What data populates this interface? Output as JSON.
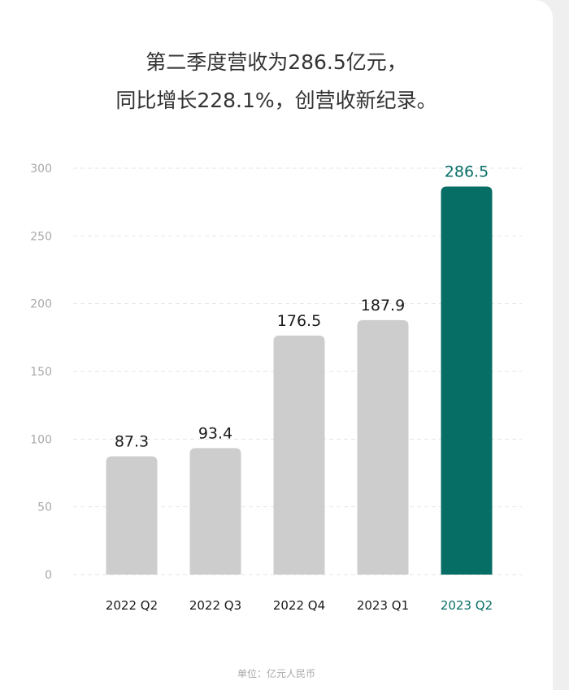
{
  "chart_data": {
    "type": "bar",
    "title_lines": [
      "第二季度营收为286.5亿元，",
      "同比增长228.1%，创营收新纪录。"
    ],
    "categories": [
      "2022 Q2",
      "2022 Q3",
      "2022 Q4",
      "2023 Q1",
      "2023 Q2"
    ],
    "values": [
      87.3,
      93.4,
      176.5,
      187.9,
      286.5
    ],
    "value_labels": [
      "87.3",
      "93.4",
      "176.5",
      "187.9",
      "286.5"
    ],
    "highlight_index": 4,
    "ylim": [
      0,
      300
    ],
    "yticks": [
      0,
      50,
      100,
      150,
      200,
      250,
      300
    ],
    "ytick_labels": [
      "0",
      "50",
      "100",
      "150",
      "200",
      "250",
      "300"
    ],
    "grid": true,
    "unit_note": "单位：亿元人民币"
  },
  "colors": {
    "bar_default": "#cdcdcd",
    "bar_highlight": "#076e66",
    "label_default": "#1a1a1a",
    "label_highlight": "#076e66",
    "axis_text": "#a9a9a9",
    "grid": "#e6e6e6"
  }
}
